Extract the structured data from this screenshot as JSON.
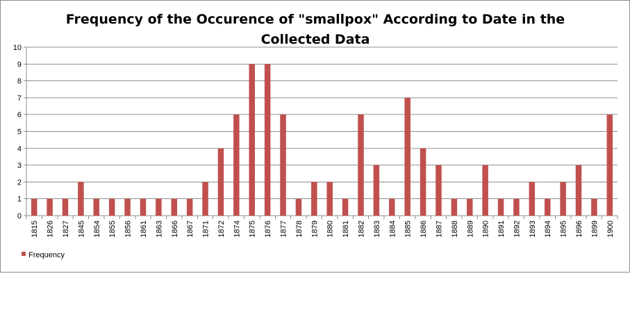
{
  "chart_data": {
    "type": "bar",
    "title_line1": "Frequency of the Occurence of \"smallpox\" According to Date in the",
    "title_line2": "Collected Data",
    "xlabel": "",
    "ylabel": "",
    "ylim": [
      0,
      10
    ],
    "yticks": [
      0,
      1,
      2,
      3,
      4,
      5,
      6,
      7,
      8,
      9,
      10
    ],
    "grid": true,
    "legend_position": "bottom-left",
    "categories": [
      "1815",
      "1826",
      "1827",
      "1845",
      "1854",
      "1855",
      "1856",
      "1861",
      "1863",
      "1866",
      "1867",
      "1871",
      "1872",
      "1874",
      "1875",
      "1876",
      "1877",
      "1878",
      "1879",
      "1880",
      "1881",
      "1882",
      "1883",
      "1884",
      "1885",
      "1886",
      "1887",
      "1888",
      "1889",
      "1890",
      "1891",
      "1892",
      "1893",
      "1894",
      "1895",
      "1896",
      "1899",
      "1900"
    ],
    "series": [
      {
        "name": "Frequency",
        "color": "#c0504d",
        "values": [
          1,
          1,
          1,
          2,
          1,
          1,
          1,
          1,
          1,
          1,
          1,
          2,
          4,
          6,
          9,
          9,
          6,
          1,
          2,
          2,
          1,
          6,
          3,
          1,
          7,
          4,
          3,
          1,
          1,
          3,
          1,
          1,
          2,
          1,
          2,
          3,
          1,
          6
        ]
      }
    ]
  }
}
